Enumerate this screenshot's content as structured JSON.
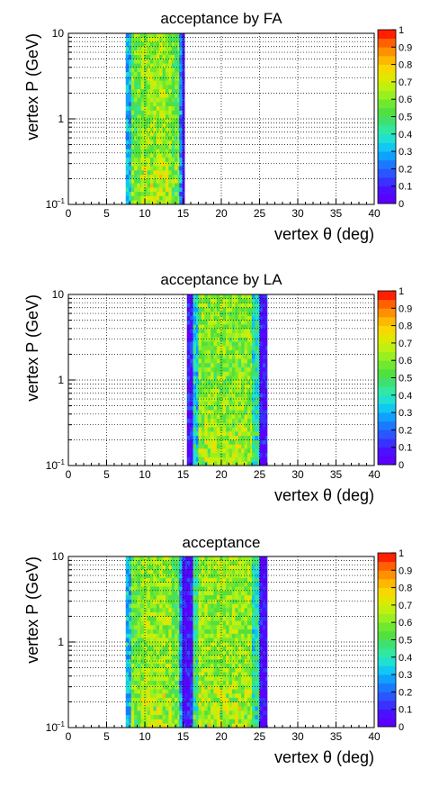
{
  "chart_data": [
    {
      "type": "heatmap",
      "title": "acceptance by FA",
      "xlabel": "vertex θ (deg)",
      "ylabel": "vertex P (GeV)",
      "xlim": [
        0,
        40
      ],
      "ylim": [
        0.1,
        10
      ],
      "ylog": true,
      "xticks": [
        "0",
        "5",
        "10",
        "15",
        "20",
        "25",
        "30",
        "35",
        "40"
      ],
      "yticks": [
        {
          "value": 0.1,
          "label": "10",
          "sup": "−1"
        },
        {
          "value": 1,
          "label": "1",
          "sup": ""
        },
        {
          "value": 10,
          "label": "10",
          "sup": ""
        }
      ],
      "zlim": [
        0,
        1
      ],
      "zticks": [
        "0",
        "0.1",
        "0.2",
        "0.3",
        "0.4",
        "0.5",
        "0.6",
        "0.7",
        "0.8",
        "0.9",
        "1"
      ],
      "grid": true,
      "bands": [
        {
          "theta_min": 7.5,
          "theta_max": 8.2,
          "acceptance_mean": 0.3
        },
        {
          "theta_min": 8.2,
          "theta_max": 9.5,
          "acceptance_mean": 0.55
        },
        {
          "theta_min": 9.5,
          "theta_max": 13.5,
          "acceptance_mean": 0.62
        },
        {
          "theta_min": 13.5,
          "theta_max": 14.5,
          "acceptance_mean": 0.55
        },
        {
          "theta_min": 14.5,
          "theta_max": 14.9,
          "acceptance_mean": 0.25
        },
        {
          "theta_min": 14.9,
          "theta_max": 15.2,
          "acceptance_mean": 0.05
        }
      ]
    },
    {
      "type": "heatmap",
      "title": "acceptance by LA",
      "xlabel": "vertex θ (deg)",
      "ylabel": "vertex P (GeV)",
      "xlim": [
        0,
        40
      ],
      "ylim": [
        0.1,
        10
      ],
      "ylog": true,
      "xticks": [
        "0",
        "5",
        "10",
        "15",
        "20",
        "25",
        "30",
        "35",
        "40"
      ],
      "yticks": [
        {
          "value": 0.1,
          "label": "10",
          "sup": "−1"
        },
        {
          "value": 1,
          "label": "1",
          "sup": ""
        },
        {
          "value": 10,
          "label": "10",
          "sup": ""
        }
      ],
      "zlim": [
        0,
        1
      ],
      "zticks": [
        "0",
        "0.1",
        "0.2",
        "0.3",
        "0.4",
        "0.5",
        "0.6",
        "0.7",
        "0.8",
        "0.9",
        "1"
      ],
      "grid": true,
      "bands": [
        {
          "theta_min": 15.5,
          "theta_max": 16.3,
          "acceptance_mean": 0.08
        },
        {
          "theta_min": 16.3,
          "theta_max": 17.0,
          "acceptance_mean": 0.35
        },
        {
          "theta_min": 17.0,
          "theta_max": 24.0,
          "acceptance_mean": 0.6
        },
        {
          "theta_min": 24.0,
          "theta_max": 25.0,
          "acceptance_mean": 0.4
        },
        {
          "theta_min": 25.0,
          "theta_max": 26.0,
          "acceptance_mean": 0.05
        }
      ]
    },
    {
      "type": "heatmap",
      "title": "acceptance",
      "xlabel": "vertex θ (deg)",
      "ylabel": "vertex P (GeV)",
      "xlim": [
        0,
        40
      ],
      "ylim": [
        0.1,
        10
      ],
      "ylog": true,
      "xticks": [
        "0",
        "5",
        "10",
        "15",
        "20",
        "25",
        "30",
        "35",
        "40"
      ],
      "yticks": [
        {
          "value": 0.1,
          "label": "10",
          "sup": "−1"
        },
        {
          "value": 1,
          "label": "1",
          "sup": ""
        },
        {
          "value": 10,
          "label": "10",
          "sup": ""
        }
      ],
      "zlim": [
        0,
        1
      ],
      "zticks": [
        "0",
        "0.1",
        "0.2",
        "0.3",
        "0.4",
        "0.5",
        "0.6",
        "0.7",
        "0.8",
        "0.9",
        "1"
      ],
      "grid": true,
      "bands": [
        {
          "theta_min": 7.5,
          "theta_max": 8.2,
          "acceptance_mean": 0.3
        },
        {
          "theta_min": 8.2,
          "theta_max": 9.5,
          "acceptance_mean": 0.55
        },
        {
          "theta_min": 9.5,
          "theta_max": 13.5,
          "acceptance_mean": 0.62
        },
        {
          "theta_min": 13.5,
          "theta_max": 14.5,
          "acceptance_mean": 0.55
        },
        {
          "theta_min": 14.5,
          "theta_max": 14.9,
          "acceptance_mean": 0.25
        },
        {
          "theta_min": 14.9,
          "theta_max": 15.5,
          "acceptance_mean": 0.05
        },
        {
          "theta_min": 15.5,
          "theta_max": 16.3,
          "acceptance_mean": 0.08
        },
        {
          "theta_min": 16.3,
          "theta_max": 17.0,
          "acceptance_mean": 0.45
        },
        {
          "theta_min": 17.0,
          "theta_max": 24.0,
          "acceptance_mean": 0.62
        },
        {
          "theta_min": 24.0,
          "theta_max": 25.0,
          "acceptance_mean": 0.4
        },
        {
          "theta_min": 25.0,
          "theta_max": 26.0,
          "acceptance_mean": 0.05
        }
      ]
    }
  ]
}
